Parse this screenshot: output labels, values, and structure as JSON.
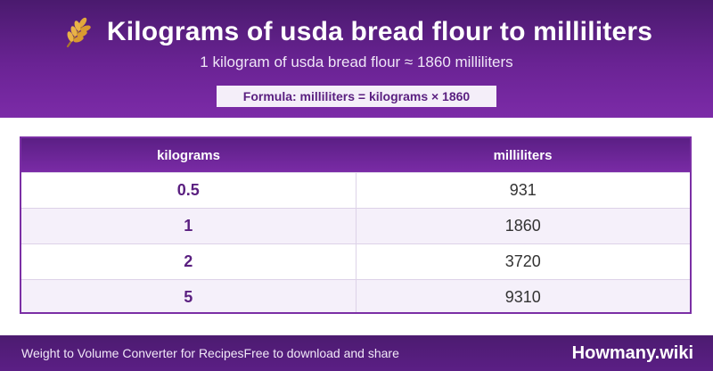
{
  "header": {
    "title": "Kilograms of usda bread flour to milliliters",
    "subtitle": "1 kilogram of usda bread flour ≈ 1860 milliliters",
    "formula": "Formula: milliliters = kilograms × 1860",
    "icon": "wheat-icon"
  },
  "table": {
    "columns": [
      "kilograms",
      "milliliters"
    ],
    "rows": [
      {
        "kg": "0.5",
        "ml": "931"
      },
      {
        "kg": "1",
        "ml": "1860"
      },
      {
        "kg": "2",
        "ml": "3720"
      },
      {
        "kg": "5",
        "ml": "9310"
      }
    ]
  },
  "footer": {
    "left_text_1": "Weight to Volume Converter for Recipes",
    "left_text_2": "Free to download and share",
    "brand": "Howmany.wiki"
  },
  "colors": {
    "header_purple": "#6a2394",
    "formula_text": "#5a1f80",
    "table_border": "#7b2fa5",
    "row_alt": "#f5f0fa"
  }
}
